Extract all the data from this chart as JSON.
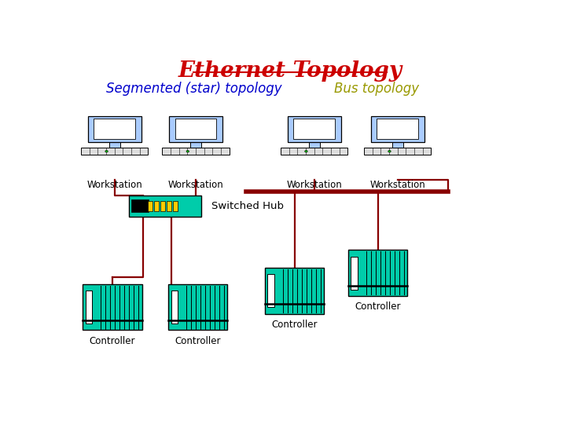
{
  "title": "Ethernet Topology",
  "title_color": "#cc0000",
  "title_fontsize": 20,
  "left_label": "Segmented (star) topology",
  "left_label_color": "#0000cc",
  "right_label": "Bus topology",
  "right_label_color": "#999900",
  "label_fontsize": 12,
  "bg_color": "#ffffff",
  "workstation_color": "#aaccff",
  "controller_color": "#00ccaa",
  "hub_color": "#00ccaa",
  "hub_yellow": "#ffcc00",
  "wire_color": "#880000",
  "text_color": "#000000"
}
